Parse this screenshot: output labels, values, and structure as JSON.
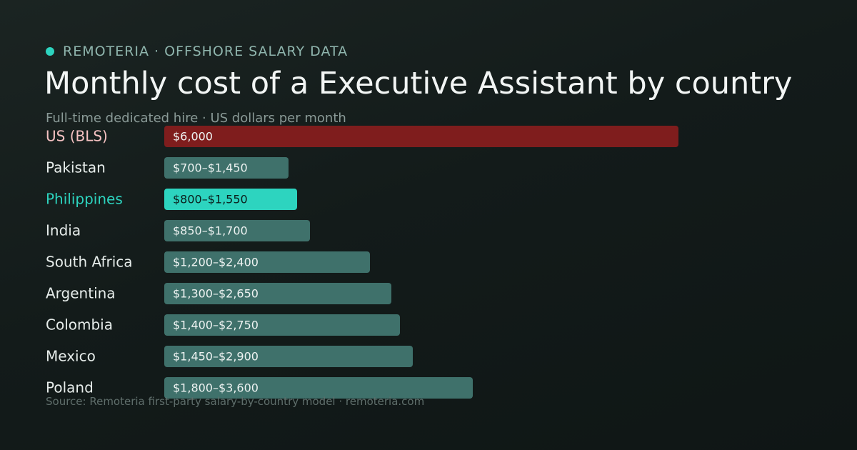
{
  "header": {
    "brand": "REMOTERIA · OFFSHORE SALARY DATA",
    "title": "Monthly cost of a Executive Assistant by country",
    "subtitle": "Full-time dedicated hire · US dollars per month"
  },
  "footer": {
    "source": "Source: Remoteria first-party salary-by-country model · remoteria.com"
  },
  "colors": {
    "benchmark": "#7f1d1d",
    "benchmark_label": "#f5c2c2",
    "highlight": "#2dd4bf",
    "default_bar": "#3f716b",
    "default_label": "#e6ecea"
  },
  "chart_data": {
    "type": "bar",
    "orientation": "horizontal",
    "xlim": [
      0,
      6000
    ],
    "categories": [
      "US (BLS)",
      "Pakistan",
      "Philippines",
      "India",
      "South Africa",
      "Argentina",
      "Colombia",
      "Mexico",
      "Poland"
    ],
    "range_low": [
      6000,
      700,
      800,
      850,
      1200,
      1300,
      1400,
      1450,
      1800
    ],
    "values": [
      6000,
      1450,
      1550,
      1700,
      2400,
      2650,
      2750,
      2900,
      3600
    ],
    "value_labels": [
      "$6,000",
      "$700–$1,450",
      "$800–$1,550",
      "$850–$1,700",
      "$1,200–$2,400",
      "$1,300–$2,650",
      "$1,400–$2,750",
      "$1,450–$2,900",
      "$1,800–$3,600"
    ],
    "highlight": [
      "benchmark",
      "default",
      "highlight",
      "default",
      "default",
      "default",
      "default",
      "default",
      "default"
    ]
  }
}
